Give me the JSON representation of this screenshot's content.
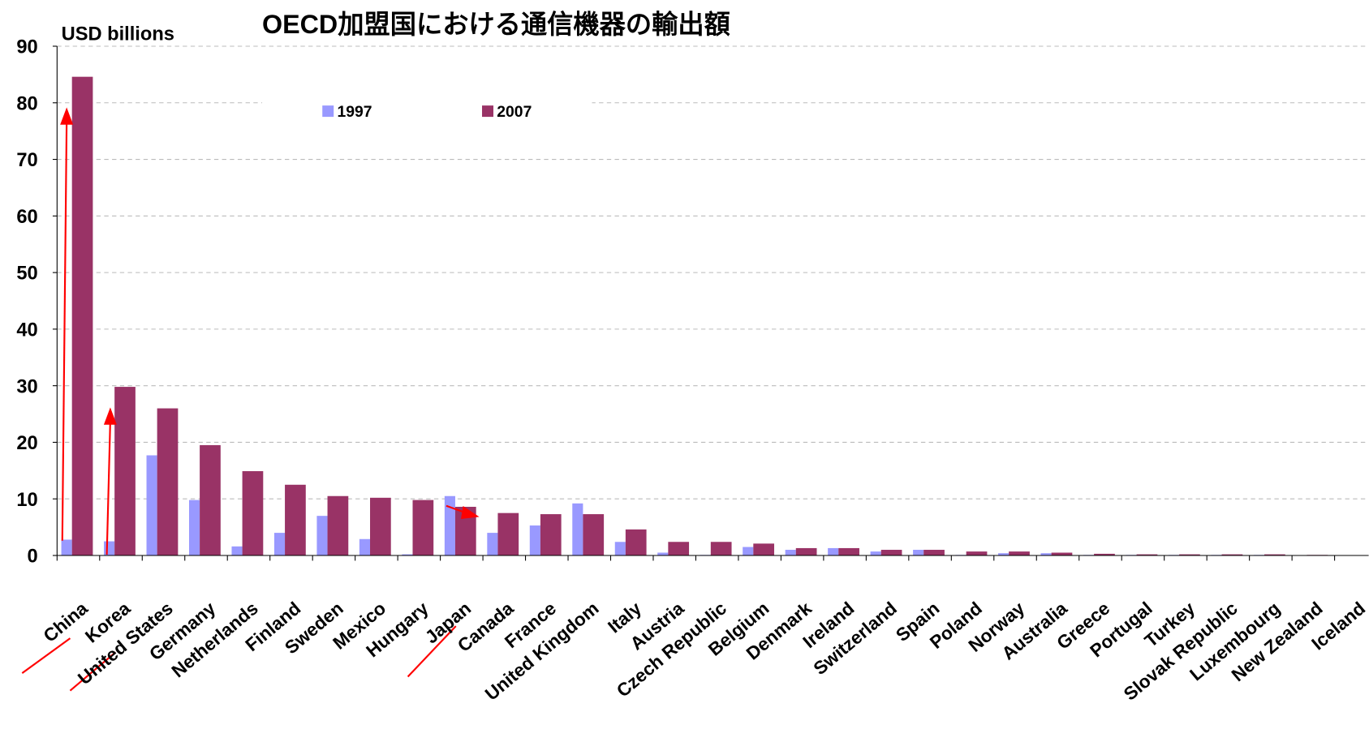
{
  "chart_data": {
    "type": "bar",
    "title": "OECD加盟国における通信機器の輸出額",
    "y_label": "USD billions",
    "categories": [
      "China",
      "Korea",
      "United States",
      "Germany",
      "Netherlands",
      "Finland",
      "Sweden",
      "Mexico",
      "Hungary",
      "Japan",
      "Canada",
      "France",
      "United Kingdom",
      "Italy",
      "Austria",
      "Czech Republic",
      "Belgium",
      "Denmark",
      "Ireland",
      "Switzerland",
      "Spain",
      "Poland",
      "Norway",
      "Australia",
      "Greece",
      "Portugal",
      "Turkey",
      "Slovak Republic",
      "Luxembourg",
      "New Zealand",
      "Iceland"
    ],
    "series": [
      {
        "name": "1997",
        "color": "#9999ff",
        "values": [
          2.8,
          2.5,
          17.7,
          9.8,
          1.6,
          4.0,
          7.0,
          2.9,
          0.2,
          10.5,
          4.0,
          5.3,
          9.2,
          2.4,
          0.5,
          0.1,
          1.5,
          1.0,
          1.3,
          0.7,
          1.0,
          0.1,
          0.4,
          0.4,
          0.1,
          0.1,
          0.1,
          0.1,
          0.1,
          0.0,
          0.0
        ]
      },
      {
        "name": "2007",
        "color": "#993366",
        "values": [
          84.6,
          29.8,
          26.0,
          19.5,
          14.9,
          12.5,
          10.5,
          10.2,
          9.8,
          8.6,
          7.5,
          7.3,
          7.3,
          4.6,
          2.4,
          2.4,
          2.1,
          1.3,
          1.3,
          1.0,
          1.0,
          0.7,
          0.7,
          0.5,
          0.3,
          0.2,
          0.2,
          0.2,
          0.2,
          0.1,
          0.0
        ]
      }
    ],
    "ylim": [
      0,
      90
    ],
    "yticks": [
      0,
      10,
      20,
      30,
      40,
      50,
      60,
      70,
      80,
      90
    ],
    "grid": true
  }
}
